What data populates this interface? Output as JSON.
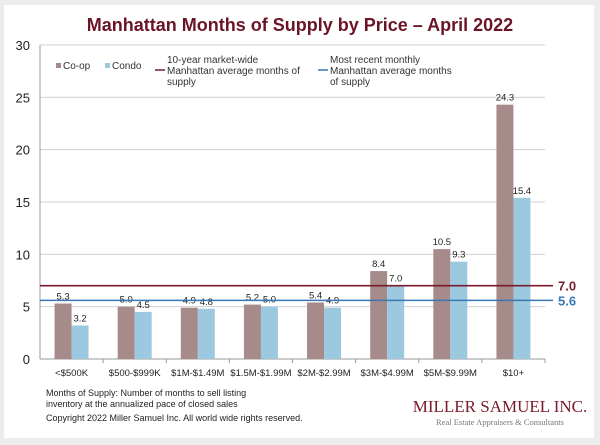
{
  "chart_data": {
    "type": "bar",
    "title": "Manhattan Months of Supply by Price – April 2022",
    "xlabel": "",
    "ylabel": "",
    "ylim": [
      0,
      30
    ],
    "yticks": [
      0,
      5,
      10,
      15,
      20,
      25,
      30
    ],
    "grid": true,
    "legend_position": "top",
    "categories": [
      "<$500K",
      "$500-$999K",
      "$1M-$1.49M",
      "$1.5M-$1.99M",
      "$2M-$2.99M",
      "$3M-$4.99M",
      "$5M-$9.99M",
      "$10+"
    ],
    "series": [
      {
        "name": "Co-op",
        "color": "#a78a8a",
        "values": [
          5.3,
          5.0,
          4.9,
          5.2,
          5.4,
          8.4,
          10.5,
          24.3
        ]
      },
      {
        "name": "Condo",
        "color": "#9cc8e0",
        "values": [
          3.2,
          4.5,
          4.8,
          5.0,
          4.9,
          7.0,
          9.3,
          15.4
        ]
      }
    ],
    "reference_lines": [
      {
        "name": "10-year market-wide Manhattan average months of supply",
        "legend_lines": [
          "10-year market-wide",
          "Manhattan average months of",
          "supply"
        ],
        "value": 7.0,
        "label": "7.0",
        "color": "#7a1a2a"
      },
      {
        "name": "Most recent monthly Manhattan average months of supply",
        "legend_lines": [
          "Most recent monthly",
          "Manhattan average months",
          "of supply"
        ],
        "value": 5.6,
        "label": "5.6",
        "color": "#3a78b5"
      }
    ]
  },
  "footer": {
    "note_line1": "Months of Supply: Number of months to sell listing",
    "note_line2": "inventory at the annualized pace of closed sales",
    "copyright": "Copyright 2022 Miller Samuel Inc.  All world wide rights reserved.",
    "logo_name": "MILLER SAMUEL INC.",
    "logo_tagline": "Real Estate Appraisers & Consultants"
  }
}
